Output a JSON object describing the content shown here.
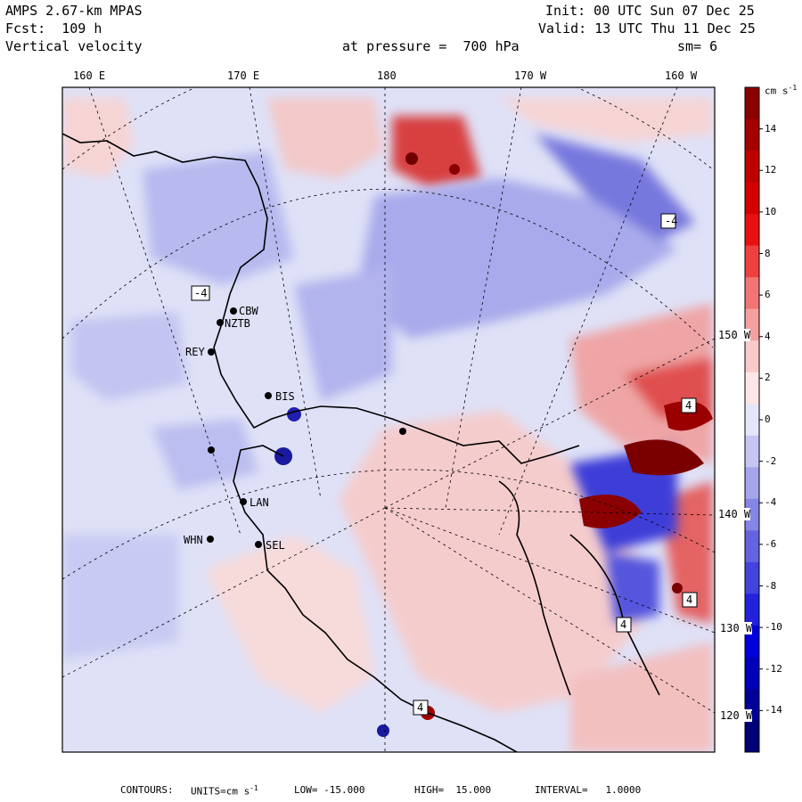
{
  "header": {
    "model": "AMPS 2.67-km MPAS",
    "fcst": "Fcst:  109 h",
    "field": "Vertical velocity",
    "init": "Init: 00 UTC Sun 07 Dec 25",
    "valid": "Valid: 13 UTC Thu 11 Dec 25",
    "level": "at pressure =  700 hPa",
    "smooth": "sm= 6"
  },
  "top_ticks": [
    "160 E",
    "170 E",
    "180",
    "170 W",
    "160 W"
  ],
  "right_ticks": [
    "150 W",
    "140 W",
    "130 W",
    "120 W"
  ],
  "stations": [
    {
      "id": "CBW",
      "lon": 167.2,
      "lat": -72.3
    },
    {
      "id": "NZTB",
      "lon": 166.3,
      "lat": -73.5
    },
    {
      "id": "REY",
      "lon": 164.0,
      "lat": -75.5
    },
    {
      "id": "BIS",
      "lon": 170.5,
      "lat": -77.0
    },
    {
      "id": "LAN",
      "lon": 166.8,
      "lat": -81.6
    },
    {
      "id": "WHN",
      "lon": 155.0,
      "lat": -81.5
    },
    {
      "id": "SEL",
      "lon": 169.0,
      "lat": -83.5
    }
  ],
  "extrema_labels": [
    {
      "text": "-4"
    },
    {
      "text": "-4"
    },
    {
      "text": "4"
    },
    {
      "text": "4"
    },
    {
      "text": "4"
    },
    {
      "text": "4"
    }
  ],
  "colorbar": {
    "units": "cm s",
    "units_exp": "-1",
    "levels": [
      "14",
      "12",
      "10",
      "8",
      "6",
      "4",
      "2",
      "0",
      "-2",
      "-4",
      "-6",
      "-8",
      "-10",
      "-12",
      "-14"
    ],
    "colors": [
      "#8b0000",
      "#a50000",
      "#bf0000",
      "#d40000",
      "#e81010",
      "#ef4040",
      "#f27575",
      "#f4a0a0",
      "#f8caca",
      "#fce6e6",
      "#e6e6fa",
      "#c6c6f3",
      "#a5a5ec",
      "#8585e5",
      "#6464e0",
      "#4343dd",
      "#2222dd",
      "#0000dd",
      "#0000bb",
      "#000099",
      "#000077"
    ]
  },
  "footer": {
    "contours": "CONTOURS:",
    "units": "UNITS=cm s",
    "units_exp": "-1",
    "low": "LOW= -15.000",
    "high": "HIGH=  15.000",
    "interval": "INTERVAL=   1.0000"
  }
}
